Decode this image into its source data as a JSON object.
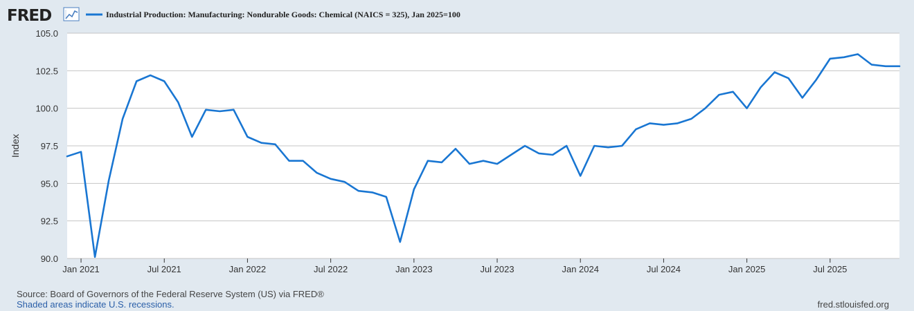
{
  "header": {
    "logo_text": "FRED",
    "logo_icon": "line-chart-icon"
  },
  "colors": {
    "series": "#1976d2",
    "plot_bg": "#ffffff",
    "page_bg": "#e1e9f0",
    "grid": "#c4c4c4"
  },
  "chart_data": {
    "type": "line",
    "title": "",
    "xlabel": "",
    "ylabel": "Index",
    "ylim": [
      90.0,
      105.0
    ],
    "yticks": [
      "90.0",
      "92.5",
      "95.0",
      "97.5",
      "100.0",
      "102.5",
      "105.0"
    ],
    "xticks": [
      {
        "label": "Jan 2021",
        "date": "2021-01"
      },
      {
        "label": "Jul 2021",
        "date": "2021-07"
      },
      {
        "label": "Jan 2022",
        "date": "2022-01"
      },
      {
        "label": "Jul 2022",
        "date": "2022-07"
      },
      {
        "label": "Jan 2023",
        "date": "2023-01"
      },
      {
        "label": "Jul 2023",
        "date": "2023-07"
      },
      {
        "label": "Jan 2024",
        "date": "2024-01"
      },
      {
        "label": "Jul 2024",
        "date": "2024-07"
      },
      {
        "label": "Jan 2025",
        "date": "2025-01"
      },
      {
        "label": "Jul 2025",
        "date": "2025-07"
      }
    ],
    "xlim": [
      "2020-12",
      "2025-12"
    ],
    "grid": true,
    "legend": "top-left",
    "series": [
      {
        "name": "Industrial Production: Manufacturing: Nondurable Goods: Chemical (NAICS = 325), Jan 2025=100",
        "x": [
          "2020-12",
          "2021-01",
          "2021-02",
          "2021-03",
          "2021-04",
          "2021-05",
          "2021-06",
          "2021-07",
          "2021-08",
          "2021-09",
          "2021-10",
          "2021-11",
          "2021-12",
          "2022-01",
          "2022-02",
          "2022-03",
          "2022-04",
          "2022-05",
          "2022-06",
          "2022-07",
          "2022-08",
          "2022-09",
          "2022-10",
          "2022-11",
          "2022-12",
          "2023-01",
          "2023-02",
          "2023-03",
          "2023-04",
          "2023-05",
          "2023-06",
          "2023-07",
          "2023-08",
          "2023-09",
          "2023-10",
          "2023-11",
          "2023-12",
          "2024-01",
          "2024-02",
          "2024-03",
          "2024-04",
          "2024-05",
          "2024-06",
          "2024-07",
          "2024-08",
          "2024-09",
          "2024-10",
          "2024-11",
          "2024-12",
          "2025-01",
          "2025-02",
          "2025-03",
          "2025-04",
          "2025-05",
          "2025-06",
          "2025-07",
          "2025-08",
          "2025-09",
          "2025-10",
          "2025-11",
          "2025-12"
        ],
        "values": [
          96.8,
          97.1,
          90.1,
          95.2,
          99.3,
          101.8,
          102.2,
          101.8,
          100.4,
          98.1,
          99.9,
          99.8,
          99.9,
          98.1,
          97.7,
          97.6,
          96.5,
          96.5,
          95.7,
          95.3,
          95.1,
          94.5,
          94.4,
          94.1,
          91.1,
          94.6,
          96.5,
          96.4,
          97.3,
          96.3,
          96.5,
          96.3,
          96.9,
          97.5,
          97.0,
          96.9,
          97.5,
          95.5,
          97.5,
          97.4,
          97.5,
          98.6,
          99.0,
          98.9,
          99.0,
          99.3,
          100.0,
          100.9,
          101.1,
          100.0,
          101.4,
          102.4,
          102.0,
          100.7,
          101.9,
          103.3,
          103.4,
          103.6,
          102.9,
          102.8,
          102.8
        ]
      }
    ]
  },
  "footer": {
    "source": "Source: Board of Governors of the Federal Reserve System (US) via FRED®",
    "recessions": "Shaded areas indicate U.S. recessions.",
    "site": "fred.stlouisfed.org"
  }
}
